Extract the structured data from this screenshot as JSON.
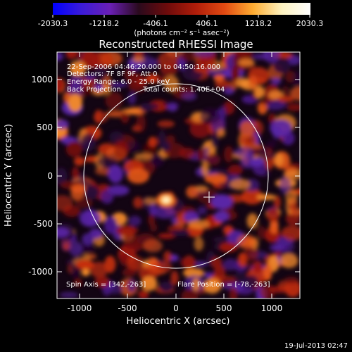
{
  "colorbar": {
    "stops": [
      "#0000ff",
      "#3b1bd8",
      "#6a1fb5",
      "#2a0a1d",
      "#6e0b0b",
      "#b01d0a",
      "#e24a12",
      "#ffad32",
      "#fff3c0",
      "#ffffff"
    ],
    "ticks": [
      "-2030.3",
      "-1218.2",
      "-406.1",
      "406.1",
      "1218.2",
      "2030.3"
    ],
    "units": "(photons cm⁻² s⁻¹ asec⁻²)"
  },
  "title": "Reconstructed RHESSI Image",
  "info": {
    "time": "22-Sep-2006 04:46:20.000 to 04:50:16.000",
    "detectors": "Detectors: 7F 8F 9F, Att 0",
    "energy": "Energy Range: 6.0 - 25.0 keV",
    "method": "Back Projection",
    "counts": "Total counts: 1.40E+04",
    "spin_axis": "Spin Axis = [342,-263]",
    "flare_position": "Flare Position = [-78,-263]"
  },
  "axes": {
    "xlabel": "Heliocentric X (arcsec)",
    "ylabel": "Heliocentric Y (arcsec)",
    "xticks": [
      "-1000",
      "-500",
      "0",
      "500",
      "1000"
    ],
    "yticks": [
      "1000",
      "500",
      "0",
      "-500",
      "-1000"
    ]
  },
  "footer": {
    "date": "19-Jul-2013 02:47"
  }
}
